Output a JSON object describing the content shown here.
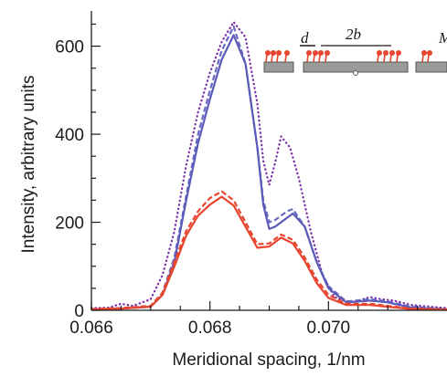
{
  "chart_data": {
    "type": "line",
    "title": "",
    "xlabel": "Meridional spacing, 1/nm",
    "ylabel": "Intensity, arbitrary units",
    "xlim": [
      0.066,
      0.072
    ],
    "ylim": [
      0,
      680
    ],
    "xticks": [
      0.066,
      0.068,
      0.07
    ],
    "xtick_labels": [
      "0.066",
      "0.068",
      "0.070"
    ],
    "yticks": [
      0,
      200,
      400,
      600
    ],
    "ytick_labels": [
      "0",
      "200",
      "400",
      "600"
    ],
    "grid": false,
    "legend": "none",
    "series": [
      {
        "color": "#7a2fa8",
        "style": "dotted",
        "points": [
          [
            0.066,
            5
          ],
          [
            0.0663,
            6
          ],
          [
            0.0665,
            15
          ],
          [
            0.0667,
            10
          ],
          [
            0.067,
            25
          ],
          [
            0.0672,
            80
          ],
          [
            0.0674,
            180
          ],
          [
            0.0676,
            330
          ],
          [
            0.0678,
            450
          ],
          [
            0.068,
            540
          ],
          [
            0.0682,
            610
          ],
          [
            0.0684,
            655
          ],
          [
            0.0686,
            620
          ],
          [
            0.0688,
            470
          ],
          [
            0.0689,
            340
          ],
          [
            0.069,
            285
          ],
          [
            0.0691,
            335
          ],
          [
            0.0692,
            395
          ],
          [
            0.06935,
            370
          ],
          [
            0.0695,
            300
          ],
          [
            0.0697,
            180
          ],
          [
            0.0699,
            80
          ],
          [
            0.0701,
            30
          ],
          [
            0.0704,
            18
          ],
          [
            0.0707,
            30
          ],
          [
            0.0709,
            25
          ],
          [
            0.0711,
            22
          ],
          [
            0.0714,
            12
          ],
          [
            0.072,
            5
          ]
        ]
      },
      {
        "color": "#6a6ac2",
        "style": "dashed",
        "points": [
          [
            0.066,
            2
          ],
          [
            0.0665,
            5
          ],
          [
            0.067,
            10
          ],
          [
            0.0672,
            40
          ],
          [
            0.0674,
            120
          ],
          [
            0.0676,
            260
          ],
          [
            0.0678,
            400
          ],
          [
            0.068,
            500
          ],
          [
            0.0682,
            590
          ],
          [
            0.0684,
            645
          ],
          [
            0.0686,
            560
          ],
          [
            0.0688,
            370
          ],
          [
            0.0689,
            250
          ],
          [
            0.069,
            200
          ],
          [
            0.0691,
            205
          ],
          [
            0.0693,
            225
          ],
          [
            0.0694,
            230
          ],
          [
            0.0696,
            190
          ],
          [
            0.0698,
            110
          ],
          [
            0.07,
            55
          ],
          [
            0.0703,
            20
          ],
          [
            0.0707,
            25
          ],
          [
            0.071,
            20
          ],
          [
            0.0714,
            8
          ],
          [
            0.072,
            2
          ]
        ]
      },
      {
        "color": "#5a5ab8",
        "style": "solid",
        "points": [
          [
            0.066,
            2
          ],
          [
            0.0665,
            4
          ],
          [
            0.067,
            8
          ],
          [
            0.0672,
            35
          ],
          [
            0.0674,
            110
          ],
          [
            0.0676,
            250
          ],
          [
            0.0678,
            380
          ],
          [
            0.068,
            480
          ],
          [
            0.0682,
            570
          ],
          [
            0.0684,
            625
          ],
          [
            0.0686,
            560
          ],
          [
            0.0688,
            370
          ],
          [
            0.0689,
            240
          ],
          [
            0.069,
            185
          ],
          [
            0.0691,
            190
          ],
          [
            0.0692,
            200
          ],
          [
            0.0694,
            220
          ],
          [
            0.0696,
            190
          ],
          [
            0.0698,
            110
          ],
          [
            0.07,
            50
          ],
          [
            0.0703,
            18
          ],
          [
            0.0707,
            22
          ],
          [
            0.071,
            18
          ],
          [
            0.0714,
            6
          ],
          [
            0.072,
            2
          ]
        ]
      },
      {
        "color": "#e8452f",
        "style": "dashed",
        "points": [
          [
            0.066,
            3
          ],
          [
            0.0665,
            5
          ],
          [
            0.067,
            10
          ],
          [
            0.0672,
            40
          ],
          [
            0.0674,
            110
          ],
          [
            0.0676,
            180
          ],
          [
            0.0678,
            225
          ],
          [
            0.068,
            255
          ],
          [
            0.0682,
            270
          ],
          [
            0.0684,
            250
          ],
          [
            0.0686,
            200
          ],
          [
            0.0688,
            150
          ],
          [
            0.069,
            152
          ],
          [
            0.0692,
            172
          ],
          [
            0.0694,
            160
          ],
          [
            0.0696,
            120
          ],
          [
            0.0698,
            70
          ],
          [
            0.07,
            35
          ],
          [
            0.0703,
            15
          ],
          [
            0.0707,
            15
          ],
          [
            0.071,
            10
          ],
          [
            0.0714,
            4
          ],
          [
            0.072,
            2
          ]
        ]
      },
      {
        "color": "#e8452f",
        "style": "solid",
        "points": [
          [
            0.066,
            2
          ],
          [
            0.0665,
            4
          ],
          [
            0.067,
            8
          ],
          [
            0.0672,
            35
          ],
          [
            0.0674,
            100
          ],
          [
            0.0676,
            170
          ],
          [
            0.0678,
            215
          ],
          [
            0.068,
            240
          ],
          [
            0.0682,
            258
          ],
          [
            0.0684,
            238
          ],
          [
            0.0686,
            190
          ],
          [
            0.0688,
            142
          ],
          [
            0.069,
            145
          ],
          [
            0.0692,
            165
          ],
          [
            0.0694,
            152
          ],
          [
            0.0696,
            112
          ],
          [
            0.0698,
            62
          ],
          [
            0.07,
            28
          ],
          [
            0.0703,
            12
          ],
          [
            0.0707,
            12
          ],
          [
            0.071,
            8
          ],
          [
            0.0714,
            3
          ],
          [
            0.072,
            1
          ]
        ]
      }
    ]
  },
  "inset": {
    "label_d": "d",
    "label_2b": "2b",
    "label_m": "M"
  }
}
